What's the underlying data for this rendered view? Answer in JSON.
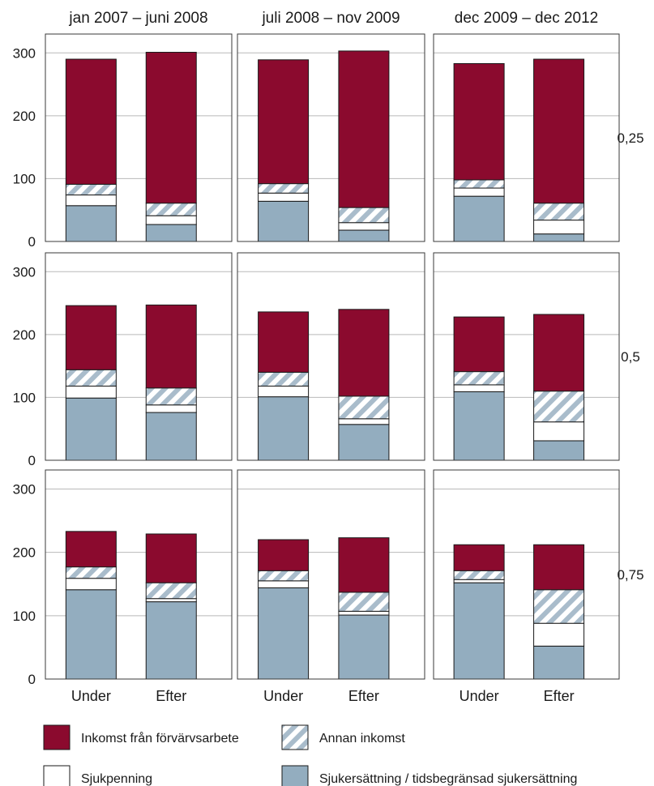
{
  "chart_data": {
    "type": "bar",
    "stacked": true,
    "panel_columns": [
      "jan 2007 – juni 2008",
      "juli 2008 – nov 2009",
      "dec 2009 – dec 2012"
    ],
    "panel_rows": [
      "0,25",
      "0,5",
      "0,75"
    ],
    "categories": [
      "Under",
      "Efter"
    ],
    "yticks": [
      0,
      100,
      200,
      300
    ],
    "ylim": [
      0,
      330
    ],
    "grid": true,
    "legend_position": "bottom",
    "series_order": [
      "sjukersattning",
      "sjukpenning",
      "annan",
      "forvarv"
    ],
    "legend": [
      {
        "key": "forvarv",
        "label": "Inkomst från förvärvsarbete",
        "color": "#8b0a2e",
        "pattern": "solid"
      },
      {
        "key": "annan",
        "label": "Annan inkomst",
        "color": "#a9bccb",
        "pattern": "hatch"
      },
      {
        "key": "sjukpenning",
        "label": "Sjukpenning",
        "color": "#ffffff",
        "pattern": "solid"
      },
      {
        "key": "sjukersattning",
        "label": "Sjukersättning / tidsbegränsad sjukersättning",
        "color": "#93adbf",
        "pattern": "solid"
      }
    ],
    "panels": [
      [
        {
          "Under": {
            "sjukersattning": 57,
            "sjukpenning": 17,
            "annan": 17,
            "forvarv": 199
          },
          "Efter": {
            "sjukersattning": 27,
            "sjukpenning": 14,
            "annan": 20,
            "forvarv": 240
          }
        },
        {
          "Under": {
            "sjukersattning": 64,
            "sjukpenning": 13,
            "annan": 15,
            "forvarv": 197
          },
          "Efter": {
            "sjukersattning": 18,
            "sjukpenning": 12,
            "annan": 24,
            "forvarv": 249
          }
        },
        {
          "Under": {
            "sjukersattning": 72,
            "sjukpenning": 13,
            "annan": 13,
            "forvarv": 185
          },
          "Efter": {
            "sjukersattning": 12,
            "sjukpenning": 22,
            "annan": 27,
            "forvarv": 229
          }
        }
      ],
      [
        {
          "Under": {
            "sjukersattning": 99,
            "sjukpenning": 19,
            "annan": 26,
            "forvarv": 102
          },
          "Efter": {
            "sjukersattning": 76,
            "sjukpenning": 12,
            "annan": 27,
            "forvarv": 132
          }
        },
        {
          "Under": {
            "sjukersattning": 101,
            "sjukpenning": 17,
            "annan": 22,
            "forvarv": 96
          },
          "Efter": {
            "sjukersattning": 57,
            "sjukpenning": 9,
            "annan": 36,
            "forvarv": 138
          }
        },
        {
          "Under": {
            "sjukersattning": 109,
            "sjukpenning": 11,
            "annan": 21,
            "forvarv": 87
          },
          "Efter": {
            "sjukersattning": 31,
            "sjukpenning": 30,
            "annan": 49,
            "forvarv": 122
          }
        }
      ],
      [
        {
          "Under": {
            "sjukersattning": 141,
            "sjukpenning": 18,
            "annan": 18,
            "forvarv": 56
          },
          "Efter": {
            "sjukersattning": 122,
            "sjukpenning": 5,
            "annan": 25,
            "forvarv": 77
          }
        },
        {
          "Under": {
            "sjukersattning": 144,
            "sjukpenning": 11,
            "annan": 16,
            "forvarv": 49
          },
          "Efter": {
            "sjukersattning": 101,
            "sjukpenning": 6,
            "annan": 30,
            "forvarv": 86
          }
        },
        {
          "Under": {
            "sjukersattning": 152,
            "sjukpenning": 5,
            "annan": 14,
            "forvarv": 41
          },
          "Efter": {
            "sjukersattning": 52,
            "sjukpenning": 36,
            "annan": 53,
            "forvarv": 71
          }
        }
      ]
    ]
  }
}
